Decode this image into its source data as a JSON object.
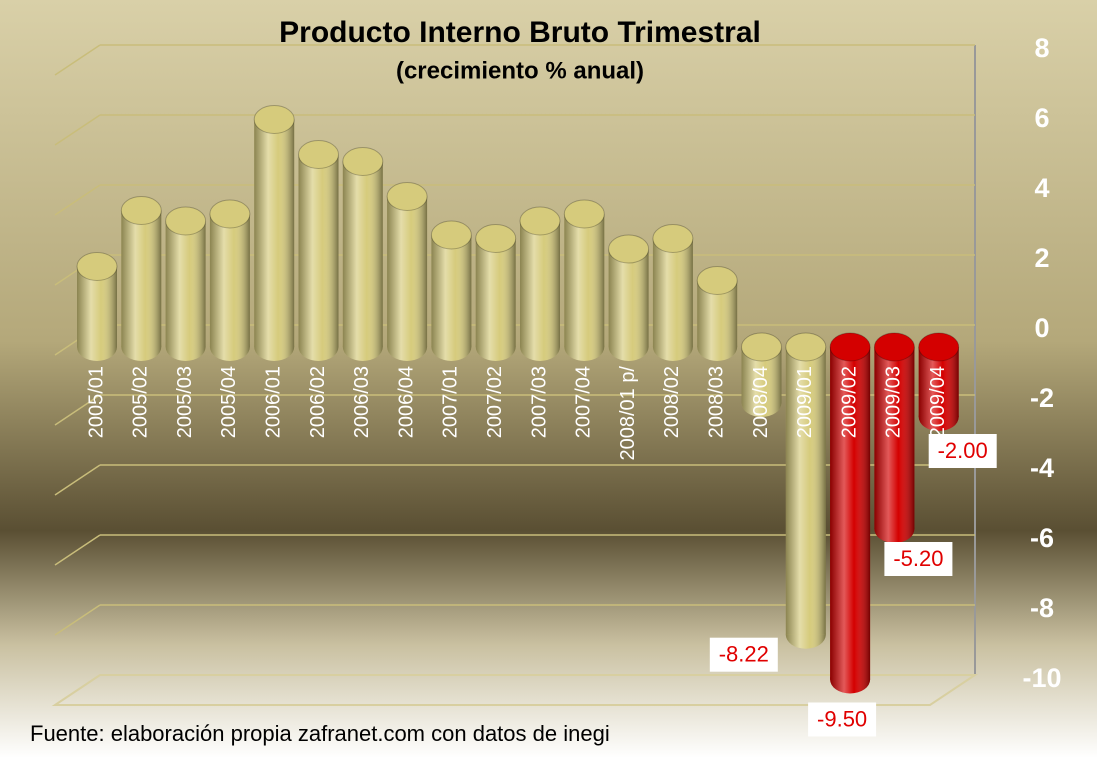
{
  "chart_data": {
    "type": "bar",
    "title": "Producto Interno Bruto Trimestral",
    "subtitle": "(crecimiento % anual)",
    "source": "Fuente: elaboración propia zafranet.com con datos de inegi",
    "categories": [
      "2005/01",
      "2005/02",
      "2005/03",
      "2005/04",
      "2006/01",
      "2006/02",
      "2006/03",
      "2006/04",
      "2007/01",
      "2007/02",
      "2007/03",
      "2007/04",
      "2008/01 p/",
      "2008/02",
      "2008/03",
      "2008/04",
      "2009/01",
      "2009/02",
      "2009/03",
      "2009/04"
    ],
    "values": [
      2.3,
      3.9,
      3.6,
      3.8,
      6.5,
      5.5,
      5.3,
      4.3,
      3.2,
      3.1,
      3.6,
      3.8,
      2.8,
      3.1,
      1.9,
      -1.6,
      -8.22,
      -9.5,
      -5.2,
      -2.0
    ],
    "value_labels": [
      null,
      null,
      null,
      null,
      null,
      null,
      null,
      null,
      null,
      null,
      null,
      null,
      null,
      null,
      null,
      null,
      "-8.22",
      "-9.50",
      "-5.20",
      "-2.00"
    ],
    "colors": [
      "#d6cb7c",
      "#d6cb7c",
      "#d6cb7c",
      "#d6cb7c",
      "#d6cb7c",
      "#d6cb7c",
      "#d6cb7c",
      "#d6cb7c",
      "#d6cb7c",
      "#d6cb7c",
      "#d6cb7c",
      "#d6cb7c",
      "#d6cb7c",
      "#d6cb7c",
      "#d6cb7c",
      "#d6cb7c",
      "#d6cb7c",
      "#d40000",
      "#d40000",
      "#d40000"
    ],
    "ylim": [
      -10,
      8
    ],
    "yticks": [
      8,
      6,
      4,
      2,
      0,
      -2,
      -4,
      -6,
      -8,
      -10
    ],
    "grid": true
  }
}
